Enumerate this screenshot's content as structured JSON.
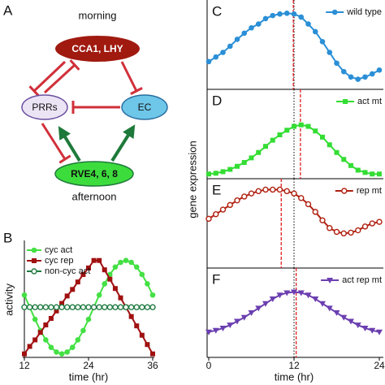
{
  "diagram": {
    "label": "A",
    "top_caption": "morning",
    "bottom_caption": "afternoon",
    "nodes": [
      {
        "label": "CCA1, LHY"
      },
      {
        "label": "PRRs"
      },
      {
        "label": "EC"
      },
      {
        "label": "RVE4, 6, 8"
      }
    ]
  },
  "chart_data": [
    {
      "type": "line",
      "label": "B",
      "xlabel": "time (hr)",
      "ylabel": "activity",
      "x": [
        12,
        13,
        14,
        15,
        16,
        17,
        18,
        19,
        20,
        21,
        22,
        23,
        24,
        25,
        26,
        27,
        28,
        29,
        30,
        31,
        32,
        33,
        34,
        35,
        36
      ],
      "xlim": [
        12,
        36
      ],
      "xticks": [
        12,
        24,
        36
      ],
      "ylim": [
        -0.02,
        1.18
      ],
      "series": [
        {
          "name": "cyc act",
          "color": "#44e044",
          "marker": "circle",
          "values": [
            0.63,
            0.5,
            0.37,
            0.25,
            0.15,
            0.07,
            0.02,
            0,
            0.02,
            0.07,
            0.15,
            0.25,
            0.37,
            0.5,
            0.63,
            0.75,
            0.85,
            0.93,
            0.98,
            1,
            0.98,
            0.93,
            0.85,
            0.75,
            0.63
          ]
        },
        {
          "name": "cyc rep",
          "color": "#a01010",
          "marker": "square",
          "values": [
            0,
            0.08,
            0.15,
            0.23,
            0.31,
            0.38,
            0.46,
            0.54,
            0.62,
            0.69,
            0.77,
            0.85,
            0.92,
            1,
            1,
            0.9,
            0.8,
            0.7,
            0.6,
            0.5,
            0.4,
            0.3,
            0.2,
            0.1,
            0
          ]
        },
        {
          "name": "non-cyc act",
          "color": "#1f7a40",
          "marker": "open-circle",
          "values": [
            0.5,
            0.5,
            0.5,
            0.5,
            0.5,
            0.5,
            0.5,
            0.5,
            0.5,
            0.5,
            0.5,
            0.5,
            0.5,
            0.5,
            0.5,
            0.5,
            0.5,
            0.5,
            0.5,
            0.5,
            0.5,
            0.5,
            0.5,
            0.5,
            0.5
          ]
        }
      ]
    },
    {
      "type": "line",
      "label": "C",
      "ylabel": "gene expression",
      "x": [
        0,
        1,
        2,
        3,
        4,
        5,
        6,
        7,
        8,
        9,
        10,
        11,
        12,
        13,
        14,
        15,
        16,
        17,
        18,
        19,
        20,
        21,
        22,
        23,
        24
      ],
      "xlim": [
        0,
        24
      ],
      "ylim": [
        0,
        1.1
      ],
      "ref_line": 12,
      "peak_line": 11.9,
      "series": [
        {
          "name": "wild type",
          "color": "#2a8fd6",
          "marker": "circle",
          "values": [
            0.34,
            0.4,
            0.46,
            0.54,
            0.63,
            0.71,
            0.78,
            0.83,
            0.9,
            0.94,
            0.96,
            0.97,
            0.96,
            0.92,
            0.83,
            0.73,
            0.6,
            0.46,
            0.32,
            0.21,
            0.14,
            0.11,
            0.14,
            0.18,
            0.23
          ]
        }
      ]
    },
    {
      "type": "line",
      "label": "D",
      "x": [
        0,
        1,
        2,
        3,
        4,
        5,
        6,
        7,
        8,
        9,
        10,
        11,
        12,
        13,
        14,
        15,
        16,
        17,
        18,
        19,
        20,
        21,
        22,
        23,
        24
      ],
      "xlim": [
        0,
        24
      ],
      "ylim": [
        0,
        1.1
      ],
      "ref_line": 12,
      "peak_line": 12.9,
      "series": [
        {
          "name": "act mt",
          "color": "#33dd33",
          "marker": "square",
          "values": [
            0.04,
            0.05,
            0.07,
            0.1,
            0.14,
            0.19,
            0.25,
            0.32,
            0.4,
            0.48,
            0.55,
            0.61,
            0.66,
            0.68,
            0.66,
            0.6,
            0.52,
            0.42,
            0.32,
            0.23,
            0.15,
            0.09,
            0.06,
            0.04,
            0.04
          ]
        }
      ]
    },
    {
      "type": "line",
      "label": "E",
      "x": [
        0,
        1,
        2,
        3,
        4,
        5,
        6,
        7,
        8,
        9,
        10,
        11,
        12,
        13,
        14,
        15,
        16,
        17,
        18,
        19,
        20,
        21,
        22,
        23,
        24
      ],
      "xlim": [
        0,
        24
      ],
      "ylim": [
        0,
        1.1
      ],
      "ref_line": 12,
      "peak_line": 10.2,
      "series": [
        {
          "name": "rep mt",
          "color": "#b02010",
          "marker": "open-circle",
          "values": [
            0.62,
            0.68,
            0.74,
            0.8,
            0.86,
            0.91,
            0.95,
            0.98,
            1,
            1,
            1,
            0.98,
            0.95,
            0.89,
            0.81,
            0.71,
            0.6,
            0.5,
            0.45,
            0.43,
            0.44,
            0.47,
            0.52,
            0.56,
            0.58
          ]
        }
      ]
    },
    {
      "type": "line",
      "label": "F",
      "xlabel": "time (hr)",
      "xticks": [
        0,
        12,
        24
      ],
      "x": [
        0,
        1,
        2,
        3,
        4,
        5,
        6,
        7,
        8,
        9,
        10,
        11,
        12,
        13,
        14,
        15,
        16,
        17,
        18,
        19,
        20,
        21,
        22,
        23,
        24
      ],
      "xlim": [
        0,
        24
      ],
      "ylim": [
        0,
        1.1
      ],
      "ref_line": 12,
      "peak_line": 12.3,
      "series": [
        {
          "name": "act rep mt",
          "color": "#6b3fb0",
          "marker": "triangle-down",
          "values": [
            0.31,
            0.33,
            0.36,
            0.4,
            0.45,
            0.5,
            0.56,
            0.62,
            0.68,
            0.74,
            0.79,
            0.82,
            0.83,
            0.82,
            0.79,
            0.74,
            0.68,
            0.62,
            0.56,
            0.5,
            0.45,
            0.4,
            0.36,
            0.33,
            0.31
          ]
        }
      ]
    }
  ]
}
